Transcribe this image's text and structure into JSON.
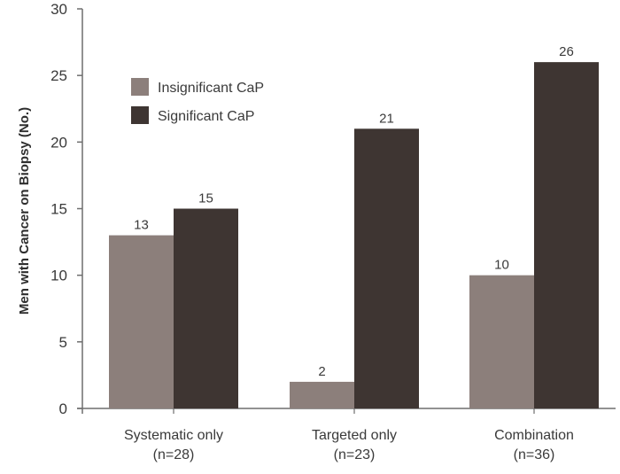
{
  "chart_data": {
    "type": "bar",
    "ylabel": "Men with Cancer on Biopsy (No.)",
    "ylim": [
      0,
      30
    ],
    "yticks": [
      0,
      5,
      10,
      15,
      20,
      25,
      30
    ],
    "categories": [
      [
        "Systematic only",
        "(n=28)"
      ],
      [
        "Targeted only",
        "(n=23)"
      ],
      [
        "Combination",
        "(n=36)"
      ]
    ],
    "series": [
      {
        "name": "Insignificant CaP",
        "values": [
          13,
          2,
          10
        ],
        "color": "#8c7f7b"
      },
      {
        "name": "Significant CaP",
        "values": [
          15,
          21,
          26
        ],
        "color": "#3e3532"
      }
    ],
    "legend_position": "top-left",
    "grid": false
  }
}
